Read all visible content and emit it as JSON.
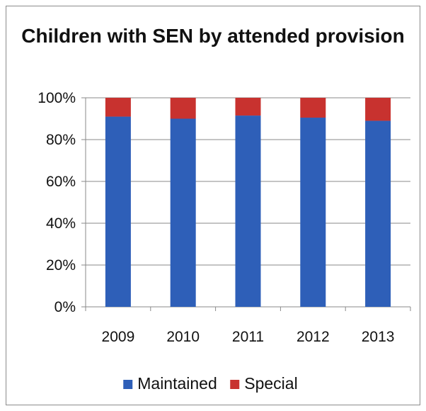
{
  "chart_data": {
    "type": "bar",
    "stacked": true,
    "title": "Children with SEN by attended provision",
    "categories": [
      "2009",
      "2010",
      "2011",
      "2012",
      "2013"
    ],
    "series": [
      {
        "name": "Maintained",
        "color": "#2e5fb8",
        "values": [
          91,
          90,
          91.5,
          90.5,
          89
        ]
      },
      {
        "name": "Special",
        "color": "#c8322f",
        "values": [
          9,
          10,
          8.5,
          9.5,
          11
        ]
      }
    ],
    "ylim": [
      0,
      100
    ],
    "yticks": [
      "0%",
      "20%",
      "40%",
      "60%",
      "80%",
      "100%"
    ],
    "grid": true,
    "legend_position": "bottom"
  }
}
